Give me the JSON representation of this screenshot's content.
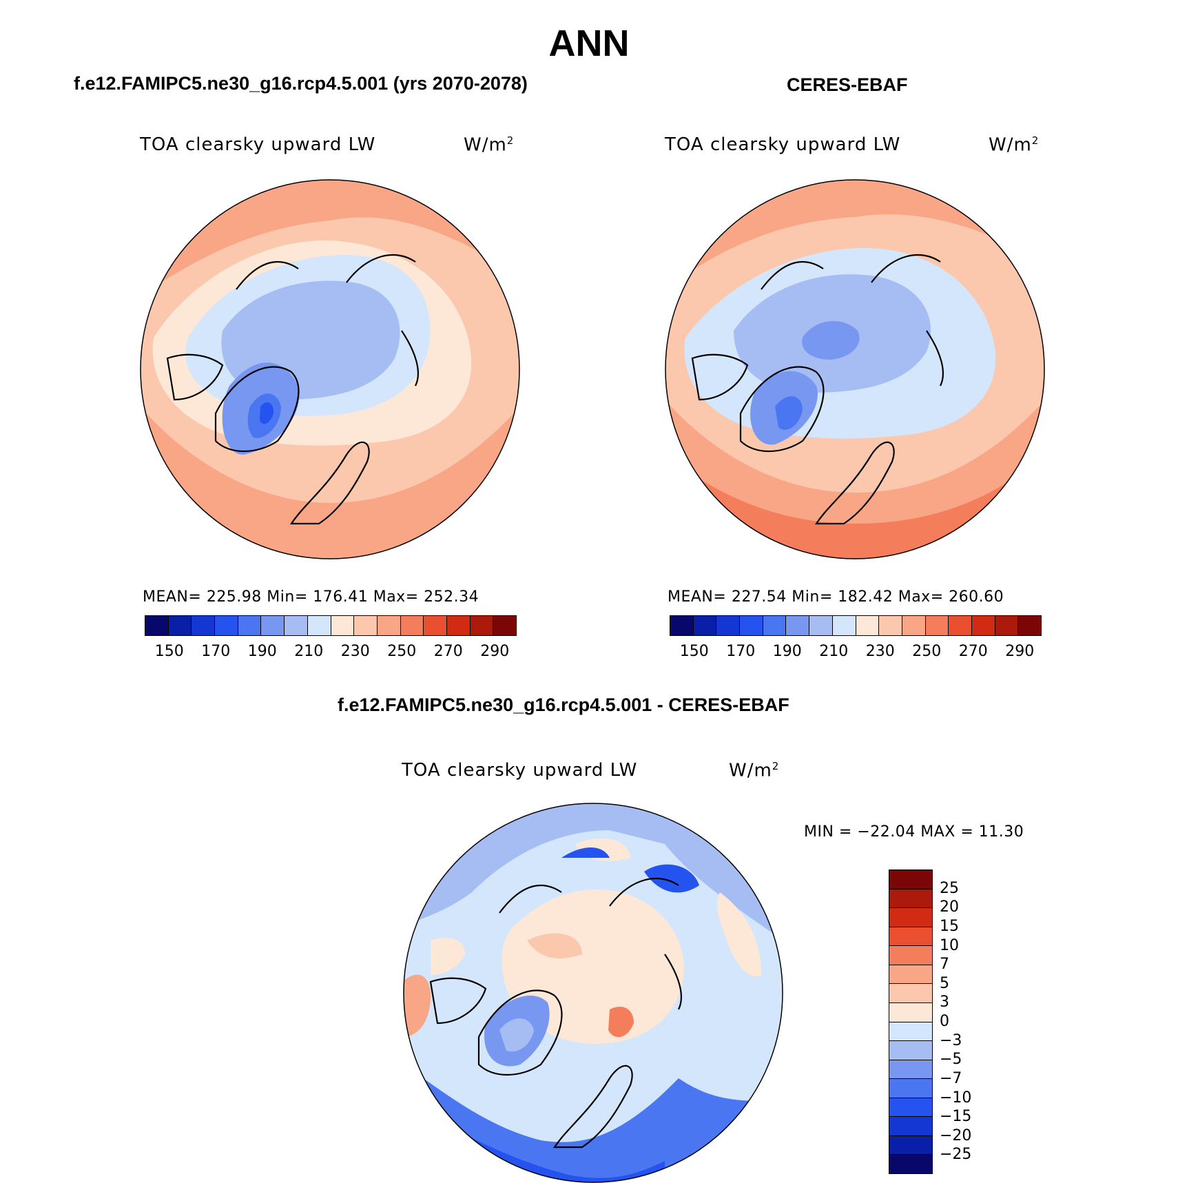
{
  "figure_title": "ANN",
  "panels": [
    {
      "header": "f.e12.FAMIPC5.ne30_g16.rcp4.5.001 (yrs 2070-2078)",
      "variable": "TOA clearsky upward LW",
      "units_base": "W/m",
      "units_exp": "2",
      "stats": "MEAN= 225.98   Min= 176.41   Max= 252.34",
      "palette": [
        "#08086b",
        "#0a1fa8",
        "#1437d4",
        "#2553f0",
        "#4b76f2",
        "#7897f0",
        "#a6bdf4",
        "#d3e6fb",
        "#fde8d8",
        "#fbc8ae",
        "#f8a686",
        "#f47d5b",
        "#ea4f2f",
        "#d22b14",
        "#ab1a0a",
        "#7c0606"
      ],
      "ticks": [
        "150",
        "170",
        "190",
        "210",
        "230",
        "250",
        "270",
        "290"
      ]
    },
    {
      "header": "CERES-EBAF",
      "variable": "TOA clearsky upward LW",
      "units_base": "W/m",
      "units_exp": "2",
      "stats": "MEAN= 227.54   Min= 182.42   Max= 260.60",
      "palette": [
        "#08086b",
        "#0a1fa8",
        "#1437d4",
        "#2553f0",
        "#4b76f2",
        "#7897f0",
        "#a6bdf4",
        "#d3e6fb",
        "#fde8d8",
        "#fbc8ae",
        "#f8a686",
        "#f47d5b",
        "#ea4f2f",
        "#d22b14",
        "#ab1a0a",
        "#7c0606"
      ],
      "ticks": [
        "150",
        "170",
        "190",
        "210",
        "230",
        "250",
        "270",
        "290"
      ]
    },
    {
      "header": "f.e12.FAMIPC5.ne30_g16.rcp4.5.001 - CERES-EBAF",
      "variable": "TOA clearsky upward LW",
      "units_base": "W/m",
      "units_exp": "2",
      "stats": "MIN = −22.04 MAX =  11.30",
      "palette": [
        "#7c0606",
        "#ab1a0a",
        "#d22b14",
        "#ea4f2f",
        "#f47d5b",
        "#f8a686",
        "#fbc8ae",
        "#fde8d8",
        "#d3e6fb",
        "#a6bdf4",
        "#7897f0",
        "#4b76f2",
        "#2553f0",
        "#1437d4",
        "#0a1fa8",
        "#08086b"
      ],
      "ticks": [
        "25",
        "20",
        "15",
        "10",
        "7",
        "5",
        "3",
        "0",
        "−3",
        "−5",
        "−7",
        "−10",
        "−15",
        "−20",
        "−25"
      ]
    }
  ]
}
